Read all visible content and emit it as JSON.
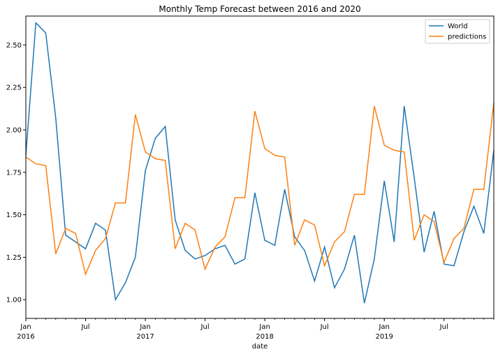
{
  "chart_data": {
    "type": "line",
    "title": "Monthly Temp Forecast between 2016 and 2020",
    "xlabel": "date",
    "ylabel": "",
    "x": [
      "2016-01",
      "2016-02",
      "2016-03",
      "2016-04",
      "2016-05",
      "2016-06",
      "2016-07",
      "2016-08",
      "2016-09",
      "2016-10",
      "2016-11",
      "2016-12",
      "2017-01",
      "2017-02",
      "2017-03",
      "2017-04",
      "2017-05",
      "2017-06",
      "2017-07",
      "2017-08",
      "2017-09",
      "2017-10",
      "2017-11",
      "2017-12",
      "2018-01",
      "2018-02",
      "2018-03",
      "2018-04",
      "2018-05",
      "2018-06",
      "2018-07",
      "2018-08",
      "2018-09",
      "2018-10",
      "2018-11",
      "2018-12",
      "2019-01",
      "2019-02",
      "2019-03",
      "2019-04",
      "2019-05",
      "2019-06",
      "2019-07",
      "2019-08",
      "2019-09",
      "2019-10",
      "2019-11",
      "2019-12"
    ],
    "ylim": [
      0.89,
      2.67
    ],
    "yticks": [
      1.0,
      1.25,
      1.5,
      1.75,
      2.0,
      2.25,
      2.5
    ],
    "ytick_labels": [
      "1.00",
      "1.25",
      "1.50",
      "1.75",
      "2.00",
      "2.25",
      "2.50"
    ],
    "xticks_major": [
      {
        "x": "2016-01",
        "label": "Jan",
        "sublabel": "2016"
      },
      {
        "x": "2016-07",
        "label": "Jul",
        "sublabel": ""
      },
      {
        "x": "2017-01",
        "label": "Jan",
        "sublabel": "2017"
      },
      {
        "x": "2017-07",
        "label": "Jul",
        "sublabel": ""
      },
      {
        "x": "2018-01",
        "label": "Jan",
        "sublabel": "2018"
      },
      {
        "x": "2018-07",
        "label": "Jul",
        "sublabel": ""
      },
      {
        "x": "2019-01",
        "label": "Jan",
        "sublabel": "2019"
      },
      {
        "x": "2019-07",
        "label": "Jul",
        "sublabel": ""
      }
    ],
    "legend_placement": "top-right",
    "grid": false,
    "series": [
      {
        "name": "World",
        "color": "#1f77b4",
        "values": [
          1.85,
          2.63,
          2.57,
          2.07,
          1.38,
          1.34,
          1.3,
          1.45,
          1.41,
          1.0,
          1.1,
          1.25,
          1.76,
          1.95,
          2.02,
          1.47,
          1.29,
          1.24,
          1.26,
          1.3,
          1.32,
          1.21,
          1.24,
          1.63,
          1.35,
          1.32,
          1.65,
          1.37,
          1.29,
          1.11,
          1.31,
          1.07,
          1.18,
          1.38,
          0.98,
          1.24,
          1.7,
          1.34,
          2.14,
          1.72,
          1.28,
          1.52,
          1.21,
          1.2,
          1.4,
          1.55,
          1.39,
          1.88
        ]
      },
      {
        "name": "predictions",
        "color": "#ff7f0e",
        "values": [
          1.84,
          1.8,
          1.79,
          1.27,
          1.42,
          1.39,
          1.15,
          1.29,
          1.36,
          1.57,
          1.57,
          2.09,
          1.87,
          1.83,
          1.82,
          1.3,
          1.45,
          1.41,
          1.18,
          1.31,
          1.37,
          1.6,
          1.6,
          2.11,
          1.89,
          1.85,
          1.84,
          1.32,
          1.47,
          1.44,
          1.2,
          1.34,
          1.4,
          1.62,
          1.62,
          2.14,
          1.91,
          1.88,
          1.87,
          1.35,
          1.5,
          1.46,
          1.22,
          1.36,
          1.42,
          1.65,
          1.65,
          2.16
        ]
      }
    ]
  }
}
